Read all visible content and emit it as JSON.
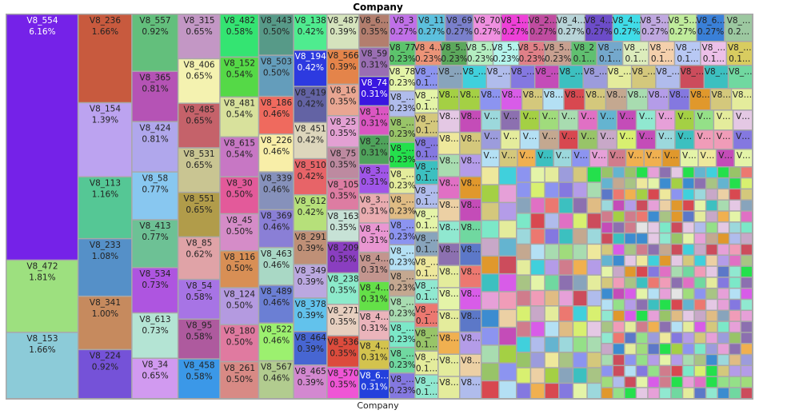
{
  "chart_data": {
    "type": "treemap",
    "title": "Company",
    "xlabel": "Company",
    "columns": [
      [
        {
          "name": "V8_554",
          "pct": "6.16%",
          "value": 6.16,
          "color": "#7522e8"
        },
        {
          "name": "V8_472",
          "pct": "1.81%",
          "value": 1.81,
          "color": "#9de07f"
        },
        {
          "name": "V8_153",
          "pct": "1.66%",
          "value": 1.66,
          "color": "#8ccbd8"
        }
      ],
      [
        {
          "name": "V8_236",
          "pct": "1.66%",
          "value": 1.66,
          "color": "#c85a3e"
        },
        {
          "name": "V8_154",
          "pct": "1.39%",
          "value": 1.39,
          "color": "#bca3f0"
        },
        {
          "name": "V8_113",
          "pct": "1.16%",
          "value": 1.16,
          "color": "#55c795"
        },
        {
          "name": "V8_233",
          "pct": "1.08%",
          "value": 1.08,
          "color": "#5590c8"
        },
        {
          "name": "V8_341",
          "pct": "1.00%",
          "value": 1.0,
          "color": "#c68a5e"
        },
        {
          "name": "V8_224",
          "pct": "0.92%",
          "value": 0.92,
          "color": "#7552d8"
        }
      ],
      [
        {
          "name": "V8_557",
          "pct": "0.92%",
          "value": 0.92,
          "color": "#63bf7c"
        },
        {
          "name": "V8_365",
          "pct": "0.81%",
          "value": 0.81,
          "color": "#b553b5"
        },
        {
          "name": "V8_424",
          "pct": "0.81%",
          "value": 0.81,
          "color": "#b0a7ec"
        },
        {
          "name": "V8_58",
          "pct": "0.77%",
          "value": 0.77,
          "color": "#88c7f0"
        },
        {
          "name": "V8_413",
          "pct": "0.77%",
          "value": 0.77,
          "color": "#6dc195"
        },
        {
          "name": "V8_534",
          "pct": "0.73%",
          "value": 0.73,
          "color": "#ae55e0"
        },
        {
          "name": "V8_613",
          "pct": "0.73%",
          "value": 0.73,
          "color": "#b4e4d4"
        },
        {
          "name": "V8_34",
          "pct": "0.65%",
          "value": 0.65,
          "color": "#d19af0"
        }
      ],
      [
        {
          "name": "V8_315",
          "pct": "0.65%",
          "value": 0.65,
          "color": "#c397c5"
        },
        {
          "name": "V8_406",
          "pct": "0.65%",
          "value": 0.65,
          "color": "#f4f2b0"
        },
        {
          "name": "V8_485",
          "pct": "0.65%",
          "value": 0.65,
          "color": "#c5626a"
        },
        {
          "name": "V8_531",
          "pct": "0.65%",
          "value": 0.65,
          "color": "#c9c592"
        },
        {
          "name": "V8_551",
          "pct": "0.65%",
          "value": 0.65,
          "color": "#b19c4a"
        },
        {
          "name": "V8_85",
          "pct": "0.62%",
          "value": 0.62,
          "color": "#e0a3a7"
        },
        {
          "name": "V8_54",
          "pct": "0.58%",
          "value": 0.58,
          "color": "#a774e5"
        },
        {
          "name": "V8_95",
          "pct": "0.58%",
          "value": 0.58,
          "color": "#ae5a9e"
        },
        {
          "name": "V8_458",
          "pct": "0.58%",
          "value": 0.58,
          "color": "#3b98e8"
        }
      ],
      [
        {
          "name": "V8_482",
          "pct": "0.58%",
          "value": 0.58,
          "color": "#34e472"
        },
        {
          "name": "V8_152",
          "pct": "0.54%",
          "value": 0.54,
          "color": "#55d947"
        },
        {
          "name": "V8_481",
          "pct": "0.54%",
          "value": 0.54,
          "color": "#d8e19c"
        },
        {
          "name": "V8_615",
          "pct": "0.54%",
          "value": 0.54,
          "color": "#c777c4"
        },
        {
          "name": "V8_30",
          "pct": "0.50%",
          "value": 0.5,
          "color": "#e35a9a"
        },
        {
          "name": "V8_45",
          "pct": "0.50%",
          "value": 0.5,
          "color": "#d58cc8"
        },
        {
          "name": "V8_116",
          "pct": "0.50%",
          "value": 0.5,
          "color": "#d88f55"
        },
        {
          "name": "V8_124",
          "pct": "0.50%",
          "value": 0.5,
          "color": "#b49ae0"
        },
        {
          "name": "V8_180",
          "pct": "0.50%",
          "value": 0.5,
          "color": "#e07aa0"
        },
        {
          "name": "V8_261",
          "pct": "0.50%",
          "value": 0.5,
          "color": "#d88a85"
        }
      ],
      [
        {
          "name": "V8_443",
          "pct": "0.50%",
          "value": 0.5,
          "color": "#579a88"
        },
        {
          "name": "V8_503",
          "pct": "0.50%",
          "value": 0.5,
          "color": "#649dbb"
        },
        {
          "name": "V8_186",
          "pct": "0.46%",
          "value": 0.46,
          "color": "#ef6a5e"
        },
        {
          "name": "V8_226",
          "pct": "0.46%",
          "value": 0.46,
          "color": "#f8eea8"
        },
        {
          "name": "V8_339",
          "pct": "0.46%",
          "value": 0.46,
          "color": "#8691bb"
        },
        {
          "name": "V8_369",
          "pct": "0.46%",
          "value": 0.46,
          "color": "#8a7fd6"
        },
        {
          "name": "V8_463",
          "pct": "0.46%",
          "value": 0.46,
          "color": "#a9d8c5"
        },
        {
          "name": "V8_489",
          "pct": "0.46%",
          "value": 0.46,
          "color": "#6b7fd4"
        },
        {
          "name": "V8_522",
          "pct": "0.46%",
          "value": 0.46,
          "color": "#9cf06f"
        },
        {
          "name": "V8_567",
          "pct": "0.46%",
          "value": 0.46,
          "color": "#b2cc8f"
        }
      ],
      [
        {
          "name": "V8_138",
          "pct": "0.42%",
          "value": 0.42,
          "color": "#4fec8f"
        },
        {
          "name": "V8_194",
          "pct": "0.42%",
          "value": 0.42,
          "color": "#2d3ae0"
        },
        {
          "name": "V8_419",
          "pct": "0.42%",
          "value": 0.42,
          "color": "#6363a4"
        },
        {
          "name": "V8_451",
          "pct": "0.42%",
          "value": 0.42,
          "color": "#ddd6bc"
        },
        {
          "name": "V8_510",
          "pct": "0.42%",
          "value": 0.42,
          "color": "#e76468"
        },
        {
          "name": "V8_612",
          "pct": "0.42%",
          "value": 0.42,
          "color": "#b6e07a"
        },
        {
          "name": "V8_291",
          "pct": "0.39%",
          "value": 0.39,
          "color": "#bf9077"
        },
        {
          "name": "V8_349",
          "pct": "0.39%",
          "value": 0.39,
          "color": "#bba8e0"
        },
        {
          "name": "V8_378",
          "pct": "0.39%",
          "value": 0.39,
          "color": "#62c2ec"
        },
        {
          "name": "V8_464",
          "pct": "0.39%",
          "value": 0.39,
          "color": "#4766d2"
        },
        {
          "name": "V8_465",
          "pct": "0.39%",
          "value": 0.39,
          "color": "#d388d0"
        }
      ],
      [
        {
          "name": "V8_487",
          "pct": "0.39%",
          "value": 0.39,
          "color": "#d5e3bd"
        },
        {
          "name": "V8_566",
          "pct": "0.39%",
          "value": 0.39,
          "color": "#e4844a"
        },
        {
          "name": "V8_16",
          "pct": "0.35%",
          "value": 0.35,
          "color": "#e9a692"
        },
        {
          "name": "V8_25",
          "pct": "0.35%",
          "value": 0.35,
          "color": "#e3a0d3"
        },
        {
          "name": "V8_75",
          "pct": "0.35%",
          "value": 0.35,
          "color": "#bd8aa0"
        },
        {
          "name": "V8_105",
          "pct": "0.35%",
          "value": 0.35,
          "color": "#dd7ca2"
        },
        {
          "name": "V8_163",
          "pct": "0.35%",
          "value": 0.35,
          "color": "#c7e2d6"
        },
        {
          "name": "V8_209",
          "pct": "0.35%",
          "value": 0.35,
          "color": "#8a3ec0"
        },
        {
          "name": "V8_238",
          "pct": "0.35%",
          "value": 0.35,
          "color": "#8ceacb"
        },
        {
          "name": "V8_271",
          "pct": "0.35%",
          "value": 0.35,
          "color": "#e6cfbf"
        },
        {
          "name": "V8_536",
          "pct": "0.35%",
          "value": 0.35,
          "color": "#dc4b3c"
        },
        {
          "name": "V8_570",
          "pct": "0.35%",
          "value": 0.35,
          "color": "#ef55d5"
        }
      ],
      [
        {
          "name": "V8_6…",
          "pct": "0.35%",
          "value": 0.35,
          "color": "#b37e6e"
        },
        {
          "name": "V8_59",
          "pct": "0.31%",
          "value": 0.31,
          "color": "#9a6eb3"
        },
        {
          "name": "V8_74",
          "pct": "0.31%",
          "value": 0.31,
          "color": "#3a16e0"
        },
        {
          "name": "V8_1…",
          "pct": "0.31%",
          "value": 0.31,
          "color": "#db56c2"
        },
        {
          "name": "V8_2…",
          "pct": "0.31%",
          "value": 0.31,
          "color": "#4fa35b"
        },
        {
          "name": "V8_3…",
          "pct": "0.31%",
          "value": 0.31,
          "color": "#a055e8"
        },
        {
          "name": "V8_3…",
          "pct": "0.31%",
          "value": 0.31,
          "color": "#e9acb0"
        },
        {
          "name": "V8_4…",
          "pct": "0.31%",
          "value": 0.31,
          "color": "#e996d2"
        },
        {
          "name": "V8_4…",
          "pct": "0.31%",
          "value": 0.31,
          "color": "#c3958e"
        },
        {
          "name": "V8_4…",
          "pct": "0.31%",
          "value": 0.31,
          "color": "#64e048"
        },
        {
          "name": "V8_4…",
          "pct": "0.31%",
          "value": 0.31,
          "color": "#ebb4bb"
        },
        {
          "name": "V8_4…",
          "pct": "0.31%",
          "value": 0.31,
          "color": "#d3c34e"
        },
        {
          "name": "V8_6…",
          "pct": "0.31%",
          "value": 0.31,
          "color": "#2340dc"
        }
      ]
    ],
    "rest": {
      "row1": [
        {
          "name": "V8_3",
          "pct": "0.27%",
          "color": "#c070e8"
        },
        {
          "name": "V8_11",
          "pct": "0.27%",
          "color": "#5cc0de"
        },
        {
          "name": "V8_69",
          "pct": "0.27%",
          "color": "#7a80cc"
        },
        {
          "name": "V8_70",
          "pct": "0.27%",
          "color": "#f090e0"
        },
        {
          "name": "V8_1…",
          "pct": "0.27%",
          "color": "#ee40d8"
        },
        {
          "name": "V8_2…",
          "pct": "0.27%",
          "color": "#c04ca0"
        },
        {
          "name": "V8_4…",
          "pct": "0.27%",
          "color": "#b8d4d8"
        },
        {
          "name": "V8_4…",
          "pct": "0.27%",
          "color": "#6c4cc8"
        },
        {
          "name": "V8_4…",
          "pct": "0.27%",
          "color": "#40dce8"
        },
        {
          "name": "V8_5…",
          "pct": "0.27%",
          "color": "#c0a8e0"
        },
        {
          "name": "V8_5…",
          "pct": "0.27%",
          "color": "#c0ec9c"
        },
        {
          "name": "V8_6…",
          "pct": "0.27%",
          "color": "#3a80d8"
        },
        {
          "name": "V8_…",
          "pct": "0.2…",
          "color": "#9cc8a0"
        }
      ],
      "row2": [
        {
          "name": "V8_77",
          "pct": "0.23%",
          "color": "#5cc46c"
        },
        {
          "name": "V8_4…",
          "pct": "0.23%",
          "color": "#ec9478"
        },
        {
          "name": "V8_5…",
          "pct": "0.23%",
          "color": "#5ca85c"
        },
        {
          "name": "V8_5…",
          "pct": "0.23%",
          "color": "#b4eec0"
        },
        {
          "name": "V8_5…",
          "pct": "0.23%",
          "color": "#b4f4ec"
        },
        {
          "name": "V8_5…",
          "pct": "0.23%",
          "color": "#e08088"
        },
        {
          "name": "V8_5…",
          "pct": "0.23%",
          "color": "#c8a090"
        },
        {
          "name": "V8_2",
          "pct": "0.1…",
          "color": "#60c070"
        },
        {
          "name": "V8_…",
          "pct": "0.1…",
          "color": "#74a8cc"
        },
        {
          "name": "V8_…",
          "pct": "0.1…",
          "color": "#dcecbc"
        },
        {
          "name": "V8_…",
          "pct": "0.1…",
          "color": "#f4d0ac"
        },
        {
          "name": "V8_…",
          "pct": "0.1…",
          "color": "#b8c8f4"
        },
        {
          "name": "V8_…",
          "pct": "0.1…",
          "color": "#ecc0e8"
        },
        {
          "name": "V8_…",
          "pct": "0.1…",
          "color": "#d8cc60"
        }
      ],
      "first_small": {
        "name": "V8_78",
        "pct": "0.23%"
      },
      "labels": {
        "v8u": "V8_…",
        "v8e": "V8…",
        "ve": "V…",
        "p01": "0.1…",
        "p023": "0.23%"
      }
    },
    "palette": [
      "#e6a0d8",
      "#9cd8dc",
      "#eee89c",
      "#8c94f0",
      "#e4c8e4",
      "#98c468",
      "#e0982c",
      "#3cc0c0",
      "#88a4bc",
      "#a0dc7c",
      "#d4c87c",
      "#24e04c",
      "#c44cb8",
      "#7ce8c8",
      "#8c70b0",
      "#cc4c5c",
      "#a4d044",
      "#a8c484",
      "#a8dcb0",
      "#40d0dc",
      "#e4ec9c",
      "#d84850",
      "#e4f4a8",
      "#e0bc84",
      "#d07c8c",
      "#b0bcec",
      "#94e088",
      "#c4a890",
      "#3c8cd0",
      "#ecd0a4",
      "#8478e0",
      "#e070c4",
      "#f09cb8",
      "#64b4d0",
      "#b49ce8",
      "#70d8a0",
      "#c8a8c8",
      "#e4e4e4",
      "#f0b050",
      "#5c78c8",
      "#b4e0f4",
      "#d8f070",
      "#d85ce8",
      "#90e8d0",
      "#ec7870",
      "#9c9cdc"
    ]
  }
}
